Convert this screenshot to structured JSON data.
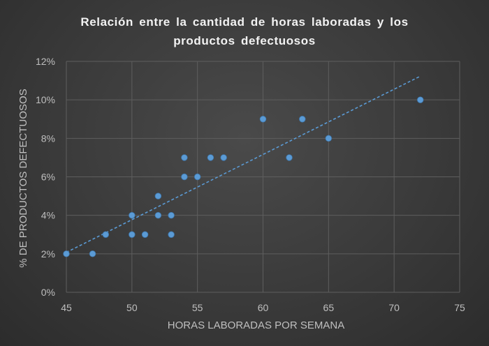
{
  "chart_data": {
    "type": "scatter",
    "title_line1": "Relación entre la cantidad de horas laboradas y los",
    "title_line2": "productos defectuosos",
    "xlabel": "HORAS LABORADAS POR SEMANA",
    "ylabel": "% DE PRODUCTOS DEFECTUOSOS",
    "xlim": [
      45,
      75
    ],
    "ylim": [
      0,
      0.12
    ],
    "x_ticks": [
      "45",
      "50",
      "55",
      "60",
      "65",
      "70",
      "75"
    ],
    "y_ticks": [
      "0%",
      "2%",
      "4%",
      "6%",
      "8%",
      "10%",
      "12%"
    ],
    "grid": true,
    "trendline": {
      "type": "linear",
      "style": "dashed",
      "x_range": [
        45,
        72
      ]
    },
    "colors": {
      "marker": "#5b9bd5",
      "trendline": "#5b9bd5",
      "grid": "#5e5e5e",
      "text": "#bfbfbf"
    },
    "points": [
      {
        "x": 45,
        "y": 0.02
      },
      {
        "x": 47,
        "y": 0.02
      },
      {
        "x": 48,
        "y": 0.03
      },
      {
        "x": 50,
        "y": 0.04
      },
      {
        "x": 50,
        "y": 0.03
      },
      {
        "x": 51,
        "y": 0.03
      },
      {
        "x": 52,
        "y": 0.05
      },
      {
        "x": 52,
        "y": 0.04
      },
      {
        "x": 53,
        "y": 0.04
      },
      {
        "x": 53,
        "y": 0.03
      },
      {
        "x": 54,
        "y": 0.07
      },
      {
        "x": 54,
        "y": 0.06
      },
      {
        "x": 55,
        "y": 0.06
      },
      {
        "x": 56,
        "y": 0.07
      },
      {
        "x": 57,
        "y": 0.07
      },
      {
        "x": 60,
        "y": 0.09
      },
      {
        "x": 62,
        "y": 0.07
      },
      {
        "x": 63,
        "y": 0.09
      },
      {
        "x": 65,
        "y": 0.08
      },
      {
        "x": 72,
        "y": 0.1
      }
    ]
  }
}
